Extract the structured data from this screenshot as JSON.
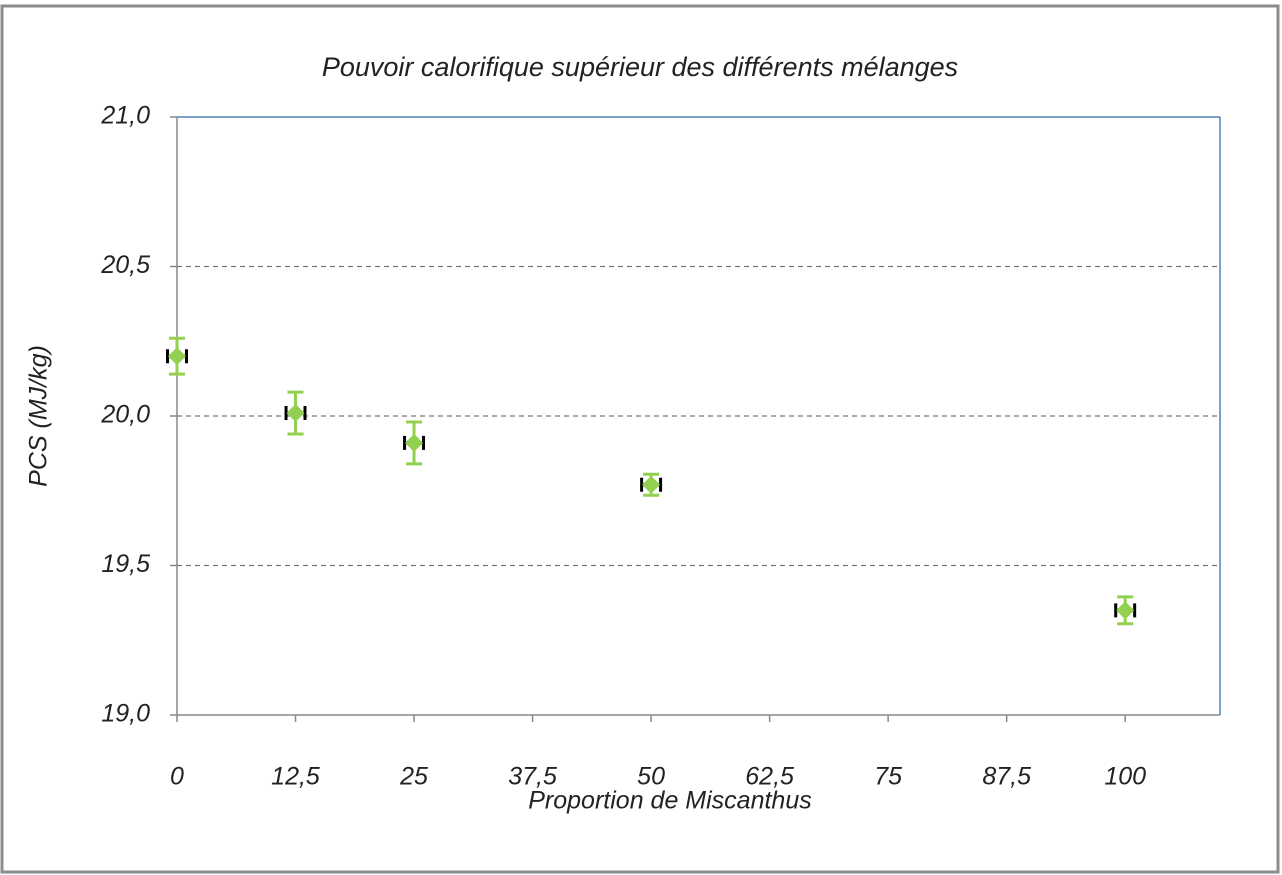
{
  "chart_data": {
    "type": "scatter",
    "title": "Pouvoir calorifique supérieur des différents mélanges",
    "xlabel": "Proportion de Miscanthus",
    "ylabel": "PCS (MJ/kg)",
    "x": [
      0,
      12.5,
      25,
      50,
      100
    ],
    "values": [
      20.2,
      20.01,
      19.91,
      19.77,
      19.35
    ],
    "yerr": [
      0.06,
      0.07,
      0.07,
      0.035,
      0.045
    ],
    "xerr": [
      1,
      1,
      1,
      1,
      1
    ],
    "color": "#92d050",
    "yerr_color": "#92d050",
    "xerr_color": "#000000",
    "xlim": [
      0,
      110
    ],
    "ylim": [
      19,
      21
    ],
    "xticks": [
      0,
      {
        "value": 12.5,
        "label": "12,5"
      },
      25,
      {
        "value": 37.5,
        "label": "37,5"
      },
      50,
      {
        "value": 62.5,
        "label": "62,5"
      },
      75,
      {
        "value": 87.5,
        "label": "87,5"
      },
      100
    ],
    "yticks": [
      {
        "value": 19,
        "label": "19,0"
      },
      {
        "value": 19.5,
        "label": "19,5"
      },
      {
        "value": 20,
        "label": "20,0"
      },
      {
        "value": 20.5,
        "label": "20,5"
      },
      {
        "value": 21,
        "label": "21,0"
      }
    ],
    "grid": true
  }
}
